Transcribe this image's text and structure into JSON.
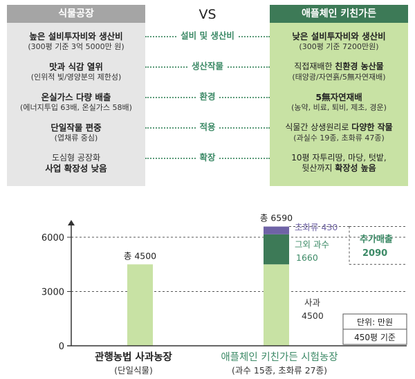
{
  "comparison": {
    "vs": "VS",
    "left_title": "식물공장",
    "right_title": "애플체인 키친가든",
    "rows": [
      {
        "label": "설비 및 생산비",
        "left": [
          "높은 설비투자비와 생산비",
          "(300평 기준 3억 5000만 원)"
        ],
        "right": [
          "낮은 설비투자비와 생산비",
          "(300평 기준 7200만원)"
        ]
      },
      {
        "label": "생산작물",
        "left": [
          "맛과 식감 열위",
          "(인위적 빛/영양분의 제한성)"
        ],
        "right_pre": "직접재배한 ",
        "right_bold": "친환경 농산물",
        "right2": "(태양광/자연흙/5無자연재배)"
      },
      {
        "label": "환경",
        "left": [
          "온실가스 다량 배출",
          "(에너지투입 63배, 온실가스 58배)"
        ],
        "right": [
          "5無자연재배",
          "(농약, 비료, 퇴비, 제초, 경운)"
        ]
      },
      {
        "label": "적용",
        "left": [
          "단일작물 편중",
          "(엽채류 중심)"
        ],
        "right_pre": "식물간 상생원리로 ",
        "right_bold": "다양한 작물",
        "right2": "(과실수 19종, 초화류 47종)"
      },
      {
        "label": "확장",
        "left": [
          "도심형 공장화",
          "사업 확장성 낮음"
        ],
        "right": [
          "10평 자투리땅, 마당, 텃밭,"
        ],
        "right2_pre": "뒷산까지 ",
        "right2_bold": "확장성 높음"
      }
    ]
  },
  "chart_data": {
    "type": "bar",
    "stacked": true,
    "ylim": [
      0,
      6800
    ],
    "yticks": [
      "0",
      "3000",
      "6000"
    ],
    "ytick_values": [
      0,
      3000,
      6000
    ],
    "gridlines": [
      3000,
      6000
    ],
    "categories": [
      {
        "name": "관행농법 사과농장",
        "sub": "(단일식물)"
      },
      {
        "name": "애플체인 키친가든 시험농장",
        "sub": "(과수 15종, 초화류 27종)"
      }
    ],
    "bars": [
      {
        "total_label": "총 4500",
        "segments": [
          {
            "value": 4500,
            "color": "#c8e2a4"
          }
        ]
      },
      {
        "total_label": "총 6590",
        "segments": [
          {
            "value": 4500,
            "color": "#c8e2a4",
            "label1": "사과",
            "label2": "4500",
            "label_color": "#333333"
          },
          {
            "value": 1660,
            "color": "#3d7a57",
            "label1": "그외 과수",
            "label2": "1660",
            "label_color": "#3d8a67"
          },
          {
            "value": 430,
            "color": "#6f63a6",
            "label1": "초화류 430",
            "label2": "",
            "label_color": "#6f63a6"
          }
        ]
      }
    ],
    "extra_sales": {
      "line1": "추가매출",
      "line2": "2090"
    },
    "unit_note": {
      "line1": "단위: 만원",
      "line2": "450평 기준"
    },
    "colors": {
      "light_green": "#c8e2a4",
      "dark_green": "#3d7a57",
      "purple": "#6f63a6",
      "accent_text": "#3d8a67"
    }
  }
}
